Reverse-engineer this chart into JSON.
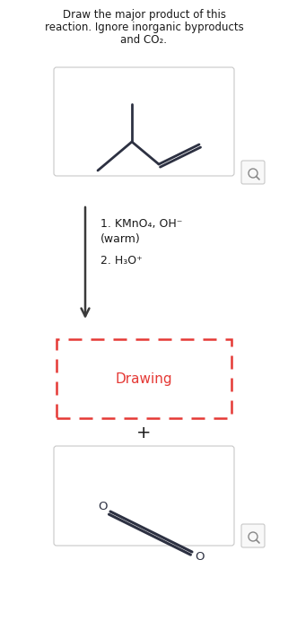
{
  "title_line1": "Draw the major product of this",
  "title_line2": "reaction. Ignore inorganic byproducts",
  "title_line3": "and CO₂.",
  "reagent1": "1. KMnO₄, OH⁻",
  "reagent2": "(warm)",
  "reagent3": "2. H₃O⁺",
  "drawing_text": "Drawing",
  "plus_text": "+",
  "bg_color": "#ffffff",
  "line_color": "#2d3142",
  "text_color": "#1a1a1a",
  "red_color": "#e53935",
  "box_bg": "#ffffff",
  "box_edge": "#c8c8c8",
  "arrow_color": "#3a3a3a",
  "title_fontsize": 8.5,
  "reagent_fontsize": 9.0,
  "drawing_fontsize": 11,
  "plus_fontsize": 14
}
